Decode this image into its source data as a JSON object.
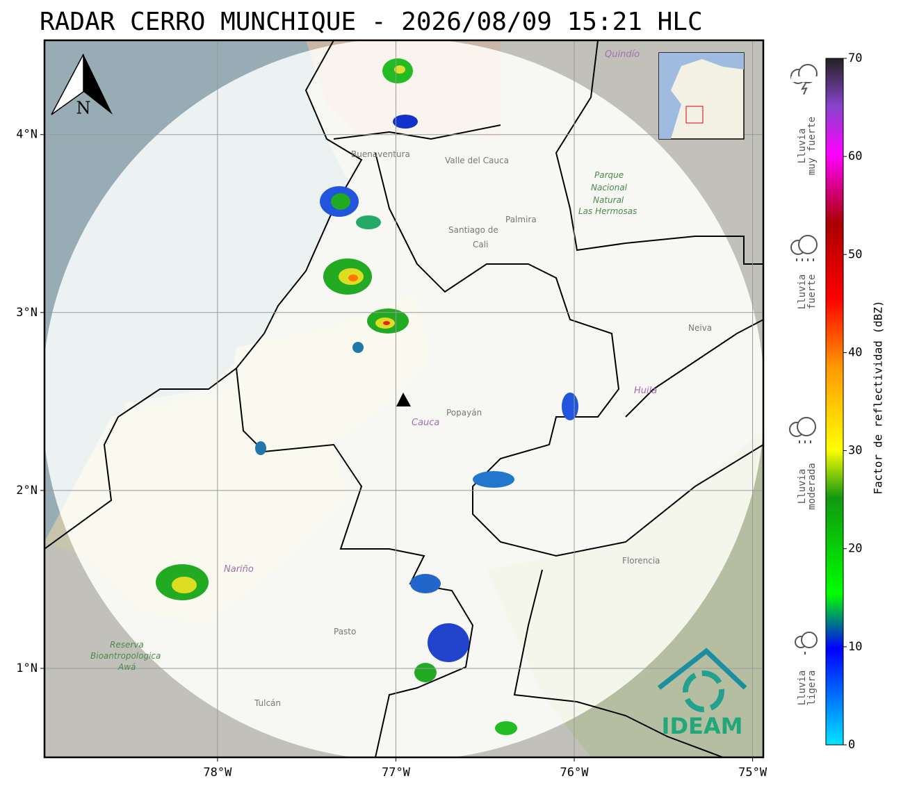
{
  "title": "RADAR CERRO MUNCHIQUE - 2026/08/09 15:21 HLC",
  "map": {
    "xlim": [
      -78.97,
      -74.94
    ],
    "ylim": [
      0.5,
      4.53
    ],
    "xticks": [
      {
        "value": -78,
        "label": "78°W"
      },
      {
        "value": -77,
        "label": "77°W"
      },
      {
        "value": -76,
        "label": "76°W"
      },
      {
        "value": -75,
        "label": "75°W"
      }
    ],
    "yticks": [
      {
        "value": 4,
        "label": "4°N"
      },
      {
        "value": 3,
        "label": "3°N"
      },
      {
        "value": 2,
        "label": "2°N"
      },
      {
        "value": 1,
        "label": "1°N"
      }
    ],
    "grid": true,
    "north": "N",
    "logo": "IDEAM",
    "places": [
      "Buenaventura",
      "Valle del Cauca",
      "Santiago de",
      "Cali",
      "Palmira",
      "Parque",
      "Nacional",
      "Natural",
      "Las Hermosas",
      "Popayán",
      "Cauca",
      "Neiva",
      "Huila",
      "Nariño",
      "Pasto",
      "Florencia",
      "Tulcán",
      "Reserva",
      "Bioantropologica",
      "Awá",
      "Quindío"
    ]
  },
  "colorbar": {
    "label": "Factor de reflectividad (dBZ)",
    "vlim": [
      0,
      70
    ],
    "ticks": [
      0,
      10,
      20,
      30,
      40,
      50,
      60,
      70
    ],
    "categories": [
      [
        "Lluvia",
        "muy fuerte"
      ],
      [
        "Lluvia",
        "fuerte"
      ],
      [
        "Lluvia",
        "moderada"
      ],
      [
        "Lluvia",
        "ligera"
      ]
    ]
  }
}
